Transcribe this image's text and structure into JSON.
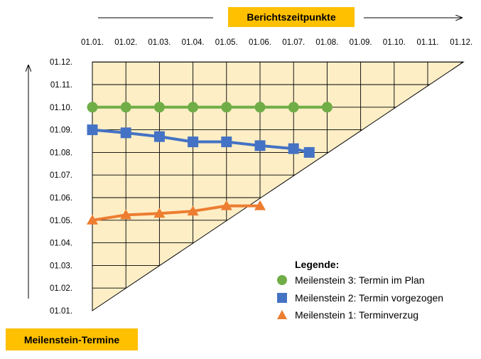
{
  "top_label": "Berichtszeitpunkte",
  "left_label": "Meilenstein-Termine",
  "legend_title": "Legende:",
  "colors": {
    "grid_fill": "#fdeec6",
    "green": "#70ad47",
    "blue": "#4472c4",
    "orange": "#ed7d31",
    "badge": "#ffc000"
  },
  "chart_data": {
    "type": "line",
    "title": "",
    "xlabel": "Berichtszeitpunkte",
    "ylabel": "Meilenstein-Termine",
    "x_ticks": [
      "01.01.",
      "01.02.",
      "01.03.",
      "01.04.",
      "01.05.",
      "01.06.",
      "01.07.",
      "01.08.",
      "01.09.",
      "01.10.",
      "01.11.",
      "01.12."
    ],
    "y_ticks": [
      "01.01.",
      "01.02.",
      "01.03.",
      "01.04.",
      "01.05.",
      "01.06.",
      "01.07.",
      "01.08.",
      "01.09.",
      "01.10.",
      "01.11.",
      "01.12."
    ],
    "x_axis_position": "top",
    "grid": true,
    "legend_position": "bottom-right",
    "series": [
      {
        "name": "Meilenstein 3: Termin im Plan",
        "marker": "circle",
        "color": "#70ad47",
        "x": [
          "01.01.",
          "01.02.",
          "01.03.",
          "01.04.",
          "01.05.",
          "01.06.",
          "01.07.",
          "01.08."
        ],
        "y": [
          "01.10.",
          "01.10.",
          "01.10.",
          "01.10.",
          "01.10.",
          "01.10.",
          "01.10.",
          "01.10."
        ]
      },
      {
        "name": "Meilenstein 2: Termin vorgezogen",
        "marker": "square",
        "color": "#4472c4",
        "x": [
          "01.01.",
          "01.02.",
          "01.03.",
          "01.04.",
          "01.05.",
          "01.06.",
          "01.07.",
          "15.07."
        ],
        "y": [
          "01.09.",
          "27.08.",
          "22.08.",
          "15.08.",
          "15.08.",
          "10.08.",
          "06.08.",
          "31.07."
        ]
      },
      {
        "name": "Meilenstein 1: Terminverzug",
        "marker": "triangle",
        "color": "#ed7d31",
        "x": [
          "01.01.",
          "01.02.",
          "01.03.",
          "01.04.",
          "01.05.",
          "01.06."
        ],
        "y": [
          "01.05.",
          "08.05.",
          "10.05.",
          "13.05.",
          "20.05.",
          "20.05."
        ]
      }
    ]
  }
}
